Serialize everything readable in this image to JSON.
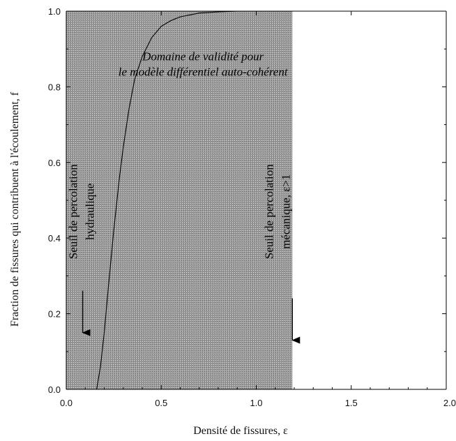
{
  "chart_data": {
    "type": "line",
    "title": "",
    "xlabel": "Densité de fissures, ε",
    "ylabel": "Fraction de fissures qui contribuent à l'écoulement, f",
    "xlim": [
      0.0,
      2.0
    ],
    "ylim": [
      0.0,
      1.0
    ],
    "xticks": [
      "0.0",
      "0.5",
      "1.0",
      "1.5",
      "2.0"
    ],
    "yticks": [
      "0.0",
      "0.2",
      "0.4",
      "0.6",
      "0.8",
      "1.0"
    ],
    "grid": false,
    "legend": "none",
    "series": [
      {
        "x": [
          0.16,
          0.18,
          0.2,
          0.22,
          0.25,
          0.28,
          0.3,
          0.33,
          0.36,
          0.4,
          0.45,
          0.5,
          0.55,
          0.6,
          0.65,
          0.7,
          0.8,
          0.9,
          1.0,
          1.1,
          1.19
        ],
        "y": [
          0.0,
          0.06,
          0.15,
          0.26,
          0.42,
          0.56,
          0.64,
          0.74,
          0.82,
          0.88,
          0.93,
          0.96,
          0.975,
          0.985,
          0.99,
          0.995,
          0.998,
          1.0,
          1.0,
          1.0,
          1.0
        ]
      }
    ],
    "shaded_region": {
      "x_range": [
        0.0,
        1.19
      ],
      "color": "#8c8c8c"
    },
    "annotations": [
      {
        "lines": [
          "Domaine de validité pour",
          "le modèle différentiel auto-cohérent"
        ],
        "x": 0.72,
        "y": 0.87
      },
      {
        "lines": [
          "Seuil de percolation",
          "hydraulique"
        ],
        "x": 0.16,
        "y": 0.47,
        "arrow_to": [
          0.16,
          0.15
        ]
      },
      {
        "lines": [
          "Seuil de percolation",
          "mécanique, ε>1"
        ],
        "x": 1.19,
        "y": 0.47,
        "arrow_to": [
          1.19,
          0.13
        ]
      }
    ]
  },
  "colors": {
    "shade": "#8c8c8c",
    "curve": "#000000",
    "axis": "#000000"
  }
}
